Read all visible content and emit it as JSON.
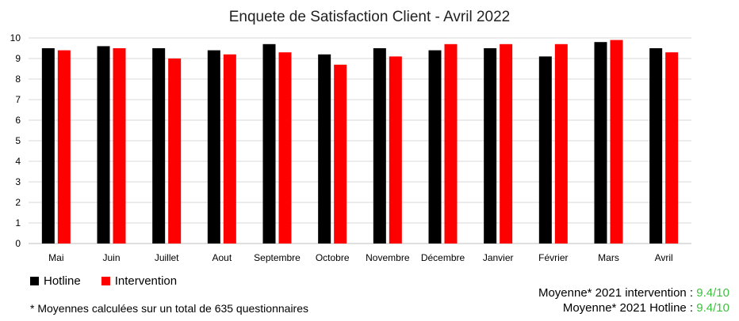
{
  "chart_data": {
    "type": "bar",
    "title": "Enquete de Satisfaction Client - Avril 2022",
    "categories": [
      "Mai",
      "Juin",
      "Juillet",
      "Aout",
      "Septembre",
      "Octobre",
      "Novembre",
      "Décembre",
      "Janvier",
      "Février",
      "Mars",
      "Avril"
    ],
    "series": [
      {
        "name": "Hotline",
        "color": "#000000",
        "values": [
          9.5,
          9.6,
          9.5,
          9.4,
          9.7,
          9.2,
          9.5,
          9.4,
          9.5,
          9.1,
          9.8,
          9.5
        ]
      },
      {
        "name": "Intervention",
        "color": "#ff0000",
        "values": [
          9.4,
          9.5,
          9.0,
          9.2,
          9.3,
          8.7,
          9.1,
          9.7,
          9.7,
          9.7,
          9.9,
          9.3
        ]
      }
    ],
    "ylim": [
      0,
      10
    ],
    "yticks": [
      0,
      1,
      2,
      3,
      4,
      5,
      6,
      7,
      8,
      9,
      10
    ],
    "grid": true,
    "legend": "bottom-left"
  },
  "footnote": "* Moyennes calculées sur un total de 635 questionnaires",
  "averages": [
    {
      "label": "Moyenne* 2021 intervention : ",
      "value": "9.4/10"
    },
    {
      "label": "Moyenne* 2021 Hotline : ",
      "value": "9.4/10"
    }
  ]
}
